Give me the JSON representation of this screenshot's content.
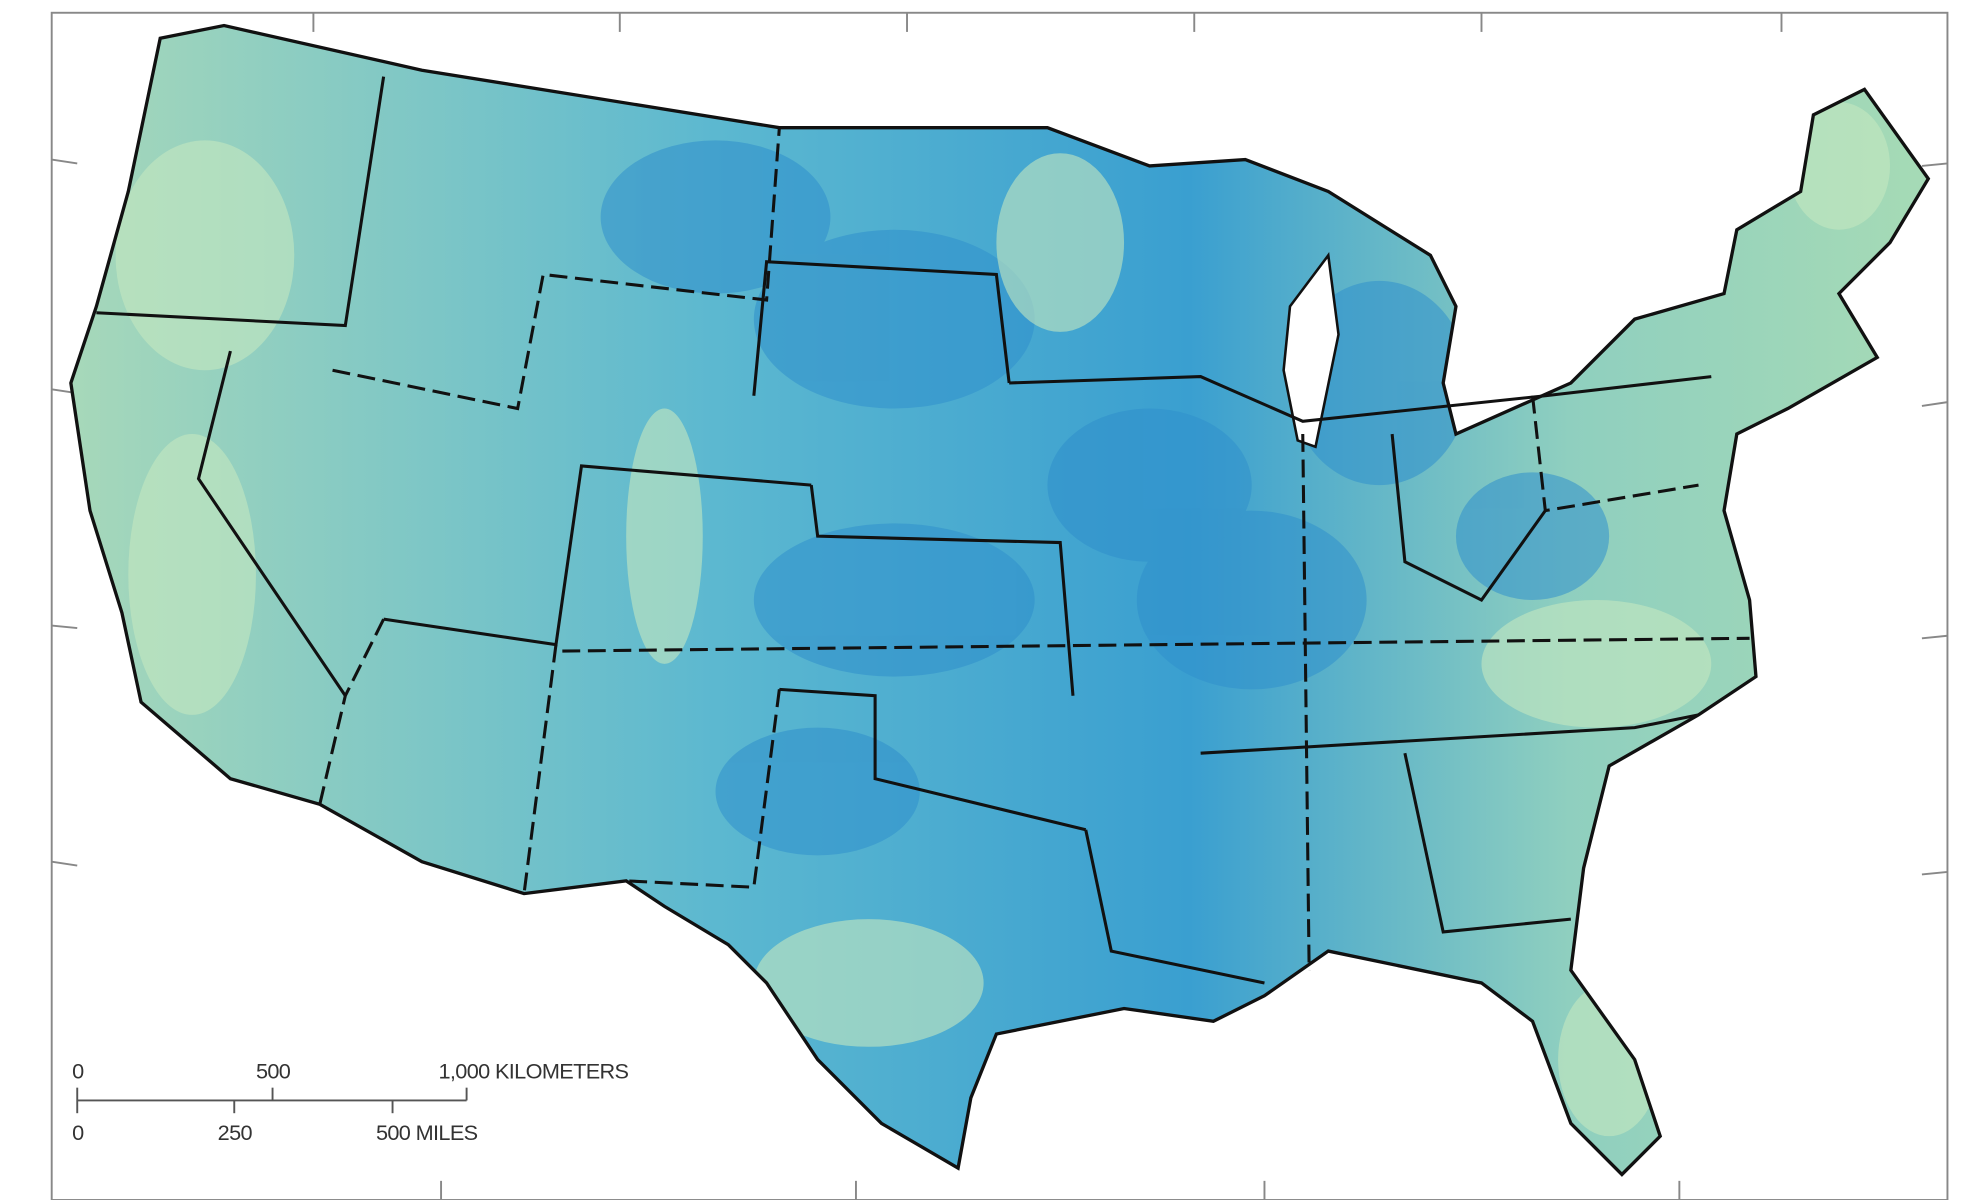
{
  "scale_bar": {
    "kilometers": [
      "0",
      "500",
      "1,000 KILOMETERS"
    ],
    "miles": [
      "0",
      "250",
      "500 MILES"
    ]
  }
}
